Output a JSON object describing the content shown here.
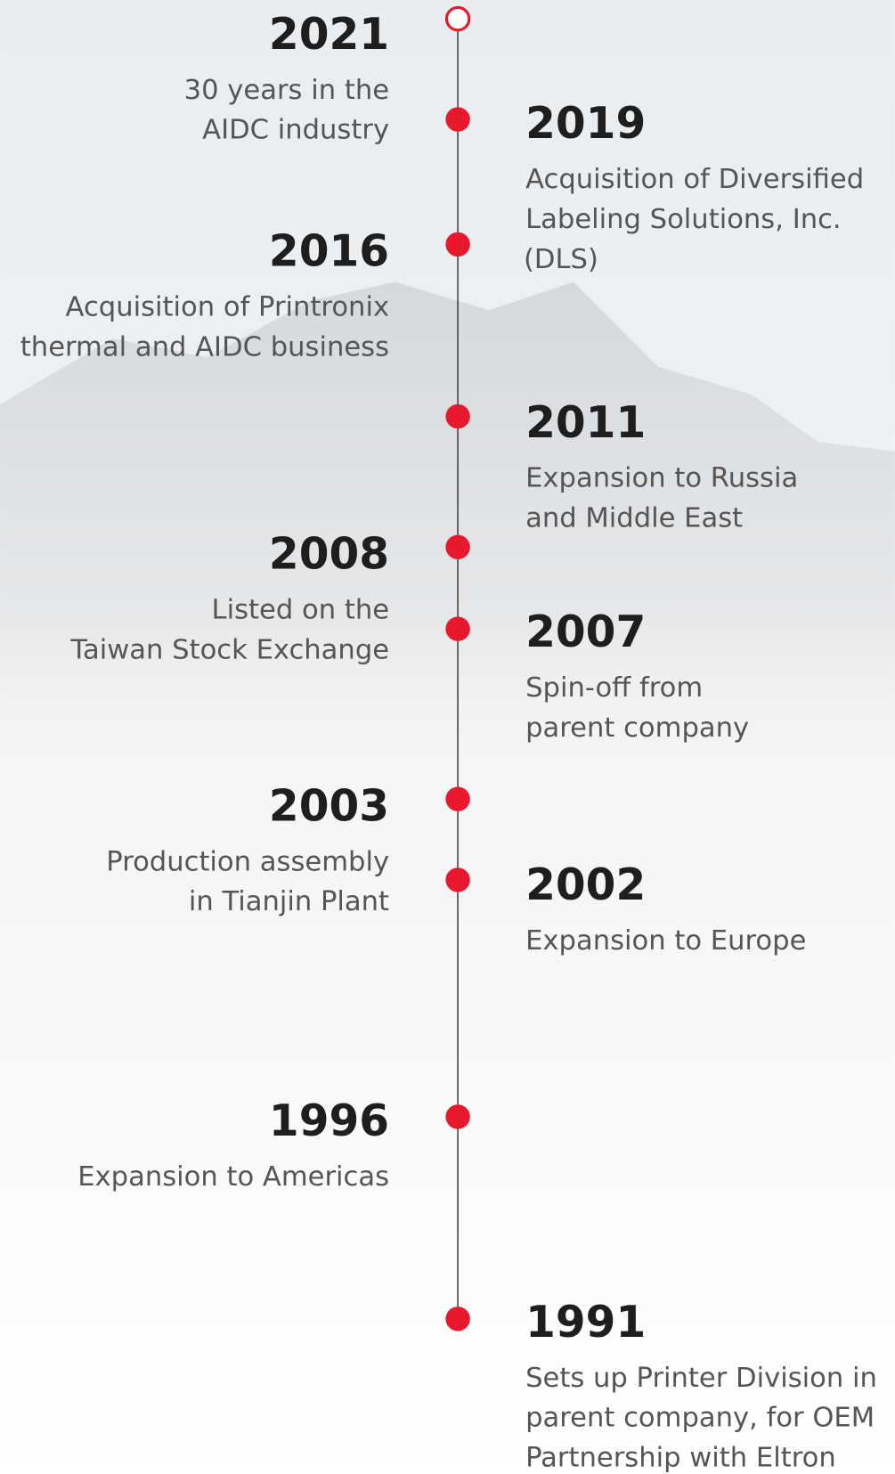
{
  "timeline": {
    "events": [
      {
        "year": "2021",
        "description": [
          "30 years in the",
          "AIDC industry"
        ]
      },
      {
        "year": "2019",
        "description": [
          "Acquisition of Diversified",
          "Labeling Solutions, Inc.",
          "(DLS)"
        ]
      },
      {
        "year": "2016",
        "description": [
          "Acquisition of Printronix",
          "thermal and AIDC business"
        ]
      },
      {
        "year": "2011",
        "description": [
          "Expansion to Russia",
          "and Middle East"
        ]
      },
      {
        "year": "2008",
        "description": [
          "Listed on the",
          "Taiwan Stock Exchange"
        ]
      },
      {
        "year": "2007",
        "description": [
          "Spin-off from",
          "parent company"
        ]
      },
      {
        "year": "2003",
        "description": [
          "Production assembly",
          "in Tianjin Plant"
        ]
      },
      {
        "year": "2002",
        "description": [
          "Expansion to Europe"
        ]
      },
      {
        "year": "1996",
        "description": [
          "Expansion to Americas"
        ]
      },
      {
        "year": "1991",
        "description": [
          "Sets up Printer Division in",
          "parent company, for OEM",
          "Partnership with Eltron"
        ]
      }
    ]
  }
}
